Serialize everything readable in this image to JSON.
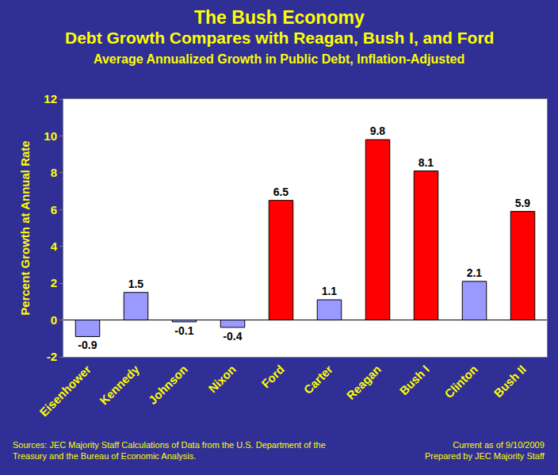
{
  "chart_data": {
    "type": "bar",
    "title": "The Bush Economy\nDebt Growth Compares with Reagan, Bush I, and Ford",
    "subtitle": "Average Annualized Growth in Public Debt, Inflation-Adjusted",
    "y_label": "Percent Growth at Annual Rate",
    "categories": [
      "Eisenhower",
      "Kennedy",
      "Johnson",
      "Nixon",
      "Ford",
      "Carter",
      "Reagan",
      "Bush I",
      "Clinton",
      "Bush II"
    ],
    "values": [
      -0.9,
      1.5,
      -0.1,
      -0.4,
      6.5,
      1.1,
      9.8,
      8.1,
      2.1,
      5.9
    ],
    "colors": [
      "#9999ff",
      "#9999ff",
      "#9999ff",
      "#9999ff",
      "#ff0000",
      "#9999ff",
      "#ff0000",
      "#ff0000",
      "#9999ff",
      "#ff0000"
    ],
    "ylim": [
      -2,
      12
    ],
    "yticks": [
      -2,
      0,
      2,
      4,
      6,
      8,
      10,
      12
    ],
    "grid": false,
    "data_labels": true,
    "annotations": [
      "Sources: JEC Majority Staff Calculations of Data from the U.S. Department of the\nTreasury and the Bureau of Economic Analysis.",
      "Current as of 9/10/2009\nPrepared by JEC Majority Staff"
    ]
  }
}
